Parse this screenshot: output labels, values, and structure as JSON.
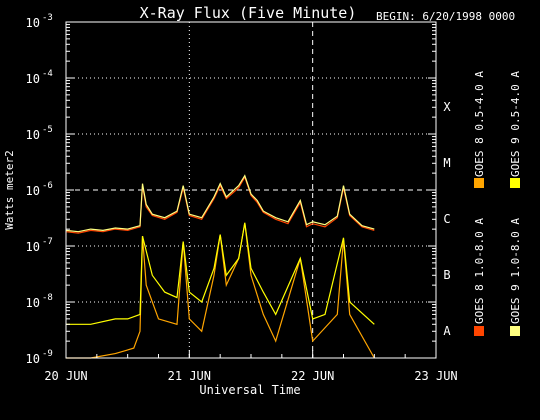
{
  "chart_data": {
    "type": "line",
    "title": "X-Ray Flux (Five Minute)",
    "begin_label": "BEGIN: 6/20/1998 0000",
    "xlabel": "Universal Time",
    "ylabel": "Watts meter2",
    "yscale": "log",
    "ylim": [
      1e-09,
      0.001
    ],
    "xlim": [
      0,
      3
    ],
    "x_ticks": [
      {
        "value": 0,
        "label": "20 JUN"
      },
      {
        "value": 1,
        "label": "21 JUN"
      },
      {
        "value": 2,
        "label": "22 JUN"
      },
      {
        "value": 3,
        "label": "23 JUN"
      }
    ],
    "y_ticks": [
      {
        "value": 1e-09,
        "base": "10",
        "exp": "-9"
      },
      {
        "value": 1e-08,
        "base": "10",
        "exp": "-8"
      },
      {
        "value": 1e-07,
        "base": "10",
        "exp": "-7"
      },
      {
        "value": 1e-06,
        "base": "10",
        "exp": "-6"
      },
      {
        "value": 1e-05,
        "base": "10",
        "exp": "-5"
      },
      {
        "value": 0.0001,
        "base": "10",
        "exp": "-4"
      },
      {
        "value": 0.001,
        "base": "10",
        "exp": "-3"
      }
    ],
    "flare_classes": [
      {
        "label": "A",
        "value": 3.16e-09
      },
      {
        "label": "B",
        "value": 3.16e-08
      },
      {
        "label": "C",
        "value": 3.16e-07
      },
      {
        "label": "M",
        "value": 3.16e-06
      },
      {
        "label": "X",
        "value": 3.16e-05
      }
    ],
    "grid": "dotted at decades, dashed at 1e-6, dotted daily verticals",
    "legend_position": "right, vertical",
    "series": [
      {
        "name": "GOES 8  1.0-8.0 A",
        "color": "#ff4500",
        "x": [
          0,
          0.1,
          0.2,
          0.3,
          0.4,
          0.5,
          0.6,
          0.62,
          0.65,
          0.7,
          0.8,
          0.9,
          0.95,
          1.0,
          1.1,
          1.2,
          1.25,
          1.3,
          1.4,
          1.45,
          1.5,
          1.55,
          1.6,
          1.7,
          1.8,
          1.9,
          1.95,
          2.0,
          2.1,
          2.2,
          2.25,
          2.3,
          2.4,
          2.5
        ],
        "y": [
          1.8e-07,
          1.7e-07,
          1.9e-07,
          1.8e-07,
          2e-07,
          1.9e-07,
          2.2e-07,
          1.2e-06,
          5e-07,
          3.5e-07,
          3e-07,
          4e-07,
          1.1e-06,
          3.5e-07,
          3e-07,
          7e-07,
          1.2e-06,
          7e-07,
          1.1e-06,
          1.7e-06,
          8e-07,
          6e-07,
          4e-07,
          3e-07,
          2.5e-07,
          6e-07,
          2.2e-07,
          2.5e-07,
          2.2e-07,
          3.2e-07,
          1.1e-06,
          3.5e-07,
          2.2e-07,
          1.9e-07
        ]
      },
      {
        "name": "GOES 8  0.5-4.0 A",
        "color": "#ffa500",
        "x": [
          0,
          0.2,
          0.4,
          0.55,
          0.6,
          0.62,
          0.65,
          0.75,
          0.9,
          0.95,
          1.0,
          1.1,
          1.2,
          1.25,
          1.3,
          1.4,
          1.45,
          1.5,
          1.6,
          1.7,
          1.9,
          2.0,
          2.2,
          2.25,
          2.3,
          2.5
        ],
        "y": [
          1e-09,
          1e-09,
          1.2e-09,
          1.5e-09,
          3e-09,
          1.5e-07,
          2e-08,
          5e-09,
          4e-09,
          1.2e-07,
          5e-09,
          3e-09,
          3e-08,
          1.6e-07,
          2e-08,
          6e-08,
          2.6e-07,
          3e-08,
          6e-09,
          2e-09,
          6e-08,
          2e-09,
          6e-09,
          1.3e-07,
          6e-09,
          1e-09
        ]
      },
      {
        "name": "GOES 9  1.0-8.0 A",
        "color": "#ffff80",
        "x": [
          0,
          0.1,
          0.2,
          0.3,
          0.4,
          0.5,
          0.6,
          0.62,
          0.65,
          0.7,
          0.8,
          0.9,
          0.95,
          1.0,
          1.1,
          1.2,
          1.25,
          1.3,
          1.4,
          1.45,
          1.5,
          1.55,
          1.6,
          1.7,
          1.8,
          1.9,
          1.95,
          2.0,
          2.1,
          2.2,
          2.25,
          2.3,
          2.4,
          2.5
        ],
        "y": [
          1.9e-07,
          1.8e-07,
          2e-07,
          1.9e-07,
          2.1e-07,
          2e-07,
          2.3e-07,
          1.3e-06,
          5.5e-07,
          3.7e-07,
          3.2e-07,
          4.2e-07,
          1.2e-06,
          3.7e-07,
          3.2e-07,
          7.5e-07,
          1.3e-06,
          7.5e-07,
          1.2e-06,
          1.8e-06,
          8.5e-07,
          6.5e-07,
          4.2e-07,
          3.2e-07,
          2.7e-07,
          6.5e-07,
          2.4e-07,
          2.7e-07,
          2.4e-07,
          3.4e-07,
          1.2e-06,
          3.7e-07,
          2.3e-07,
          2e-07
        ]
      },
      {
        "name": "GOES 9  0.5-4.0 A",
        "color": "#ffff00",
        "x": [
          0,
          0.2,
          0.4,
          0.5,
          0.6,
          0.62,
          0.7,
          0.8,
          0.9,
          0.95,
          1.0,
          1.1,
          1.2,
          1.25,
          1.3,
          1.4,
          1.45,
          1.5,
          1.6,
          1.7,
          1.9,
          2.0,
          2.1,
          2.25,
          2.3,
          2.5
        ],
        "y": [
          4e-09,
          4e-09,
          5e-09,
          5e-09,
          6e-09,
          1.5e-07,
          3e-08,
          1.5e-08,
          1.2e-08,
          1.2e-07,
          1.5e-08,
          1e-08,
          4e-08,
          1.6e-07,
          3e-08,
          6e-08,
          2.6e-07,
          4e-08,
          1.5e-08,
          6e-09,
          6e-08,
          5e-09,
          6e-09,
          1.4e-07,
          1e-08,
          4e-09
        ]
      }
    ]
  }
}
